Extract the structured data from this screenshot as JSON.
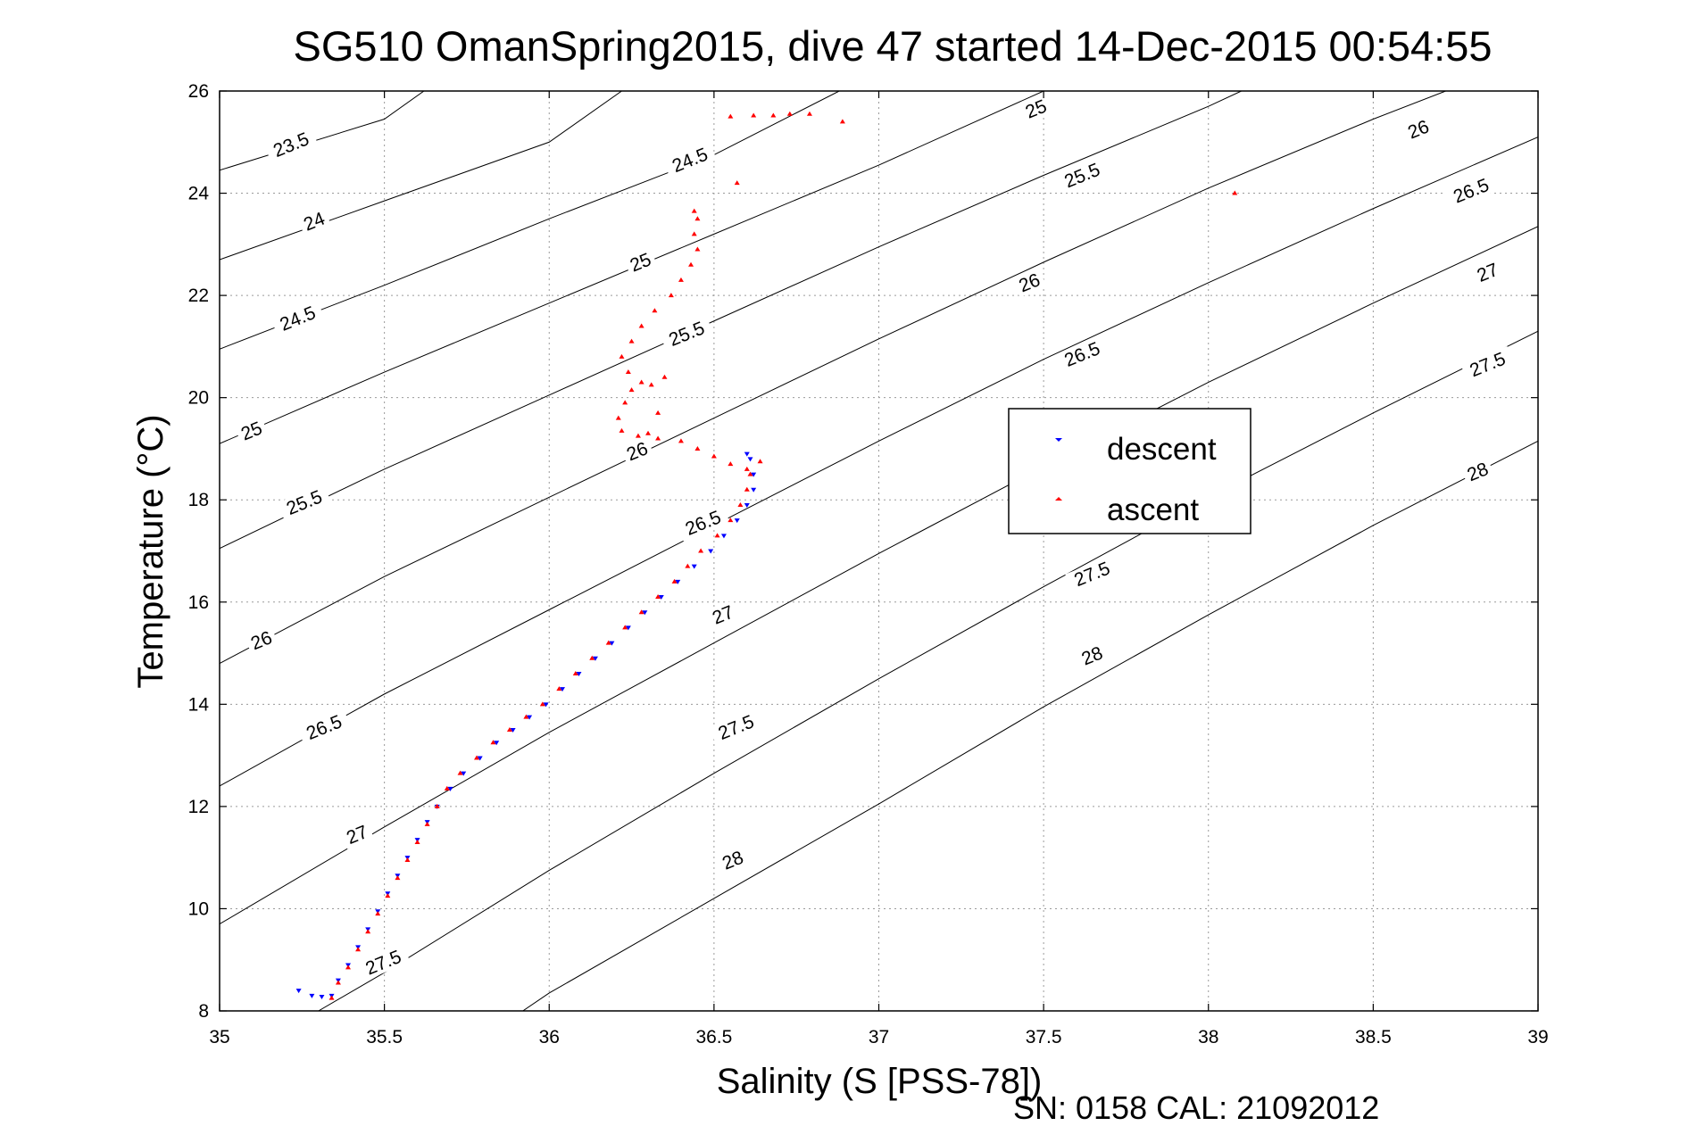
{
  "chart_data": {
    "type": "scatter",
    "title": "SG510 OmanSpring2015, dive 47 started 14-Dec-2015 00:54:55",
    "xlabel": "Salinity (S [PSS-78])",
    "ylabel": "Temperature (°C)",
    "xlim": [
      35,
      39
    ],
    "ylim": [
      8,
      26
    ],
    "x_ticks": [
      "35",
      "35.5",
      "36",
      "36.5",
      "37",
      "37.5",
      "38",
      "38.5",
      "39"
    ],
    "y_ticks": [
      "8",
      "10",
      "12",
      "14",
      "16",
      "18",
      "20",
      "22",
      "24",
      "26"
    ],
    "grid": true,
    "legend_position": "center-right",
    "footer": "SN: 0158  CAL: 21092012",
    "isopycnals": [
      {
        "label": "23.5",
        "points": [
          [
            35,
            24.45
          ],
          [
            35.5,
            25.45
          ],
          [
            35.62,
            26
          ]
        ]
      },
      {
        "label": "24",
        "points": [
          [
            35,
            22.7
          ],
          [
            35.5,
            23.85
          ],
          [
            36,
            25.0
          ],
          [
            36.22,
            26
          ]
        ]
      },
      {
        "label": "24.5",
        "points": [
          [
            35,
            20.95
          ],
          [
            35.5,
            22.2
          ],
          [
            36,
            23.5
          ],
          [
            36.5,
            24.75
          ],
          [
            36.88,
            26
          ]
        ]
      },
      {
        "label": "25",
        "points": [
          [
            35,
            19.1
          ],
          [
            35.5,
            20.5
          ],
          [
            36,
            21.85
          ],
          [
            36.5,
            23.2
          ],
          [
            37,
            24.55
          ],
          [
            37.5,
            26
          ]
        ]
      },
      {
        "label": "25.5",
        "points": [
          [
            35,
            17.05
          ],
          [
            35.5,
            18.6
          ],
          [
            36,
            20.05
          ],
          [
            36.5,
            21.5
          ],
          [
            37,
            22.95
          ],
          [
            37.5,
            24.35
          ],
          [
            38,
            25.7
          ],
          [
            38.1,
            26
          ]
        ]
      },
      {
        "label": "26",
        "points": [
          [
            35,
            14.8
          ],
          [
            35.5,
            16.5
          ],
          [
            36,
            18.05
          ],
          [
            36.5,
            19.6
          ],
          [
            37,
            21.15
          ],
          [
            37.5,
            22.65
          ],
          [
            38,
            24.1
          ],
          [
            38.5,
            25.45
          ],
          [
            38.72,
            26
          ]
        ]
      },
      {
        "label": "26.5",
        "points": [
          [
            35,
            12.4
          ],
          [
            35.5,
            14.2
          ],
          [
            36,
            15.85
          ],
          [
            36.5,
            17.5
          ],
          [
            37,
            19.15
          ],
          [
            37.5,
            20.75
          ],
          [
            38,
            22.25
          ],
          [
            38.5,
            23.7
          ],
          [
            39,
            25.1
          ]
        ]
      },
      {
        "label": "27",
        "points": [
          [
            35,
            9.7
          ],
          [
            35.5,
            11.6
          ],
          [
            36,
            13.45
          ],
          [
            36.5,
            15.2
          ],
          [
            37,
            16.95
          ],
          [
            37.5,
            18.65
          ],
          [
            38,
            20.3
          ],
          [
            38.5,
            21.85
          ],
          [
            39,
            23.35
          ]
        ]
      },
      {
        "label": "27.5",
        "points": [
          [
            35.3,
            8
          ],
          [
            35.5,
            8.75
          ],
          [
            36,
            10.75
          ],
          [
            36.5,
            12.65
          ],
          [
            37,
            14.5
          ],
          [
            37.5,
            16.3
          ],
          [
            38,
            18.05
          ],
          [
            38.5,
            19.7
          ],
          [
            39,
            21.3
          ]
        ]
      },
      {
        "label": "28",
        "points": [
          [
            35.92,
            8
          ],
          [
            36,
            8.35
          ],
          [
            36.5,
            10.2
          ],
          [
            37,
            12.05
          ],
          [
            37.5,
            13.95
          ],
          [
            38,
            15.75
          ],
          [
            38.5,
            17.5
          ],
          [
            39,
            19.15
          ]
        ]
      }
    ],
    "iso_labels": [
      {
        "text": "23.5",
        "x": 35.22,
        "y": 24.9
      },
      {
        "text": "24",
        "x": 35.29,
        "y": 23.4
      },
      {
        "text": "24.5",
        "x": 35.24,
        "y": 21.5
      },
      {
        "text": "25",
        "x": 35.1,
        "y": 19.3
      },
      {
        "text": "25.5",
        "x": 35.26,
        "y": 17.9
      },
      {
        "text": "26",
        "x": 35.13,
        "y": 15.2
      },
      {
        "text": "26.5",
        "x": 35.32,
        "y": 13.5
      },
      {
        "text": "27",
        "x": 35.42,
        "y": 11.4
      },
      {
        "text": "27.5",
        "x": 35.5,
        "y": 8.9
      },
      {
        "text": "24.5",
        "x": 36.43,
        "y": 24.6
      },
      {
        "text": "25",
        "x": 36.28,
        "y": 22.6
      },
      {
        "text": "25.5",
        "x": 36.42,
        "y": 21.2
      },
      {
        "text": "26",
        "x": 36.27,
        "y": 18.9
      },
      {
        "text": "26.5",
        "x": 36.47,
        "y": 17.5
      },
      {
        "text": "27",
        "x": 36.53,
        "y": 15.7
      },
      {
        "text": "27.5",
        "x": 36.57,
        "y": 13.5
      },
      {
        "text": "28",
        "x": 36.56,
        "y": 10.9
      },
      {
        "text": "25",
        "x": 37.48,
        "y": 25.6
      },
      {
        "text": "25.5",
        "x": 37.62,
        "y": 24.3
      },
      {
        "text": "26",
        "x": 37.46,
        "y": 22.2
      },
      {
        "text": "26.5",
        "x": 37.62,
        "y": 20.8
      },
      {
        "text": "27.5",
        "x": 37.65,
        "y": 16.5
      },
      {
        "text": "28",
        "x": 37.65,
        "y": 14.9
      },
      {
        "text": "26",
        "x": 38.64,
        "y": 25.2
      },
      {
        "text": "26.5",
        "x": 38.8,
        "y": 24.0
      },
      {
        "text": "27",
        "x": 38.85,
        "y": 22.4
      },
      {
        "text": "27.5",
        "x": 38.85,
        "y": 20.6
      },
      {
        "text": "28",
        "x": 38.82,
        "y": 18.5
      }
    ],
    "series": [
      {
        "name": "descent",
        "color": "#0000ff",
        "marker": "triangle-down",
        "points": [
          [
            35.24,
            8.4
          ],
          [
            35.28,
            8.3
          ],
          [
            35.31,
            8.28
          ],
          [
            35.34,
            8.3
          ],
          [
            35.36,
            8.6
          ],
          [
            35.39,
            8.9
          ],
          [
            35.42,
            9.25
          ],
          [
            35.45,
            9.6
          ],
          [
            35.48,
            9.95
          ],
          [
            35.51,
            10.3
          ],
          [
            35.54,
            10.65
          ],
          [
            35.57,
            11.0
          ],
          [
            35.6,
            11.35
          ],
          [
            35.63,
            11.7
          ],
          [
            35.66,
            12.0
          ],
          [
            35.7,
            12.35
          ],
          [
            35.74,
            12.65
          ],
          [
            35.79,
            12.95
          ],
          [
            35.84,
            13.25
          ],
          [
            35.89,
            13.5
          ],
          [
            35.94,
            13.75
          ],
          [
            35.99,
            14.0
          ],
          [
            36.04,
            14.3
          ],
          [
            36.09,
            14.6
          ],
          [
            36.14,
            14.9
          ],
          [
            36.19,
            15.2
          ],
          [
            36.24,
            15.5
          ],
          [
            36.29,
            15.8
          ],
          [
            36.34,
            16.1
          ],
          [
            36.39,
            16.4
          ],
          [
            36.44,
            16.7
          ],
          [
            36.49,
            17.0
          ],
          [
            36.53,
            17.3
          ],
          [
            36.57,
            17.6
          ],
          [
            36.6,
            17.9
          ],
          [
            36.62,
            18.2
          ],
          [
            36.62,
            18.5
          ],
          [
            36.61,
            18.8
          ],
          [
            36.6,
            18.9
          ]
        ]
      },
      {
        "name": "ascent",
        "color": "#ff0000",
        "marker": "triangle-up",
        "points": [
          [
            35.34,
            8.25
          ],
          [
            35.36,
            8.55
          ],
          [
            35.39,
            8.85
          ],
          [
            35.42,
            9.2
          ],
          [
            35.45,
            9.55
          ],
          [
            35.48,
            9.9
          ],
          [
            35.51,
            10.25
          ],
          [
            35.54,
            10.6
          ],
          [
            35.57,
            10.95
          ],
          [
            35.6,
            11.3
          ],
          [
            35.63,
            11.65
          ],
          [
            35.66,
            12.0
          ],
          [
            35.69,
            12.35
          ],
          [
            35.73,
            12.65
          ],
          [
            35.78,
            12.95
          ],
          [
            35.83,
            13.25
          ],
          [
            35.88,
            13.5
          ],
          [
            35.93,
            13.75
          ],
          [
            35.98,
            14.0
          ],
          [
            36.03,
            14.3
          ],
          [
            36.08,
            14.6
          ],
          [
            36.13,
            14.9
          ],
          [
            36.18,
            15.2
          ],
          [
            36.23,
            15.5
          ],
          [
            36.28,
            15.8
          ],
          [
            36.33,
            16.1
          ],
          [
            36.38,
            16.4
          ],
          [
            36.42,
            16.7
          ],
          [
            36.46,
            17.0
          ],
          [
            36.51,
            17.3
          ],
          [
            36.55,
            17.6
          ],
          [
            36.58,
            17.9
          ],
          [
            36.6,
            18.2
          ],
          [
            36.61,
            18.5
          ],
          [
            36.64,
            18.75
          ],
          [
            36.6,
            18.6
          ],
          [
            36.55,
            18.7
          ],
          [
            36.5,
            18.85
          ],
          [
            36.45,
            19.0
          ],
          [
            36.4,
            19.15
          ],
          [
            36.33,
            19.2
          ],
          [
            36.27,
            19.25
          ],
          [
            36.22,
            19.35
          ],
          [
            36.21,
            19.6
          ],
          [
            36.23,
            19.9
          ],
          [
            36.25,
            20.15
          ],
          [
            36.28,
            20.3
          ],
          [
            36.31,
            20.25
          ],
          [
            36.35,
            20.4
          ],
          [
            36.33,
            19.7
          ],
          [
            36.3,
            19.3
          ],
          [
            36.24,
            20.5
          ],
          [
            36.22,
            20.8
          ],
          [
            36.25,
            21.1
          ],
          [
            36.28,
            21.4
          ],
          [
            36.32,
            21.7
          ],
          [
            36.37,
            22.0
          ],
          [
            36.4,
            22.3
          ],
          [
            36.43,
            22.6
          ],
          [
            36.45,
            22.9
          ],
          [
            36.44,
            23.2
          ],
          [
            36.45,
            23.5
          ],
          [
            36.44,
            23.65
          ],
          [
            36.57,
            24.2
          ],
          [
            36.55,
            25.5
          ],
          [
            36.62,
            25.52
          ],
          [
            36.68,
            25.52
          ],
          [
            36.73,
            25.55
          ],
          [
            36.79,
            25.55
          ],
          [
            36.89,
            25.4
          ],
          [
            38.08,
            24.0
          ]
        ]
      }
    ]
  }
}
